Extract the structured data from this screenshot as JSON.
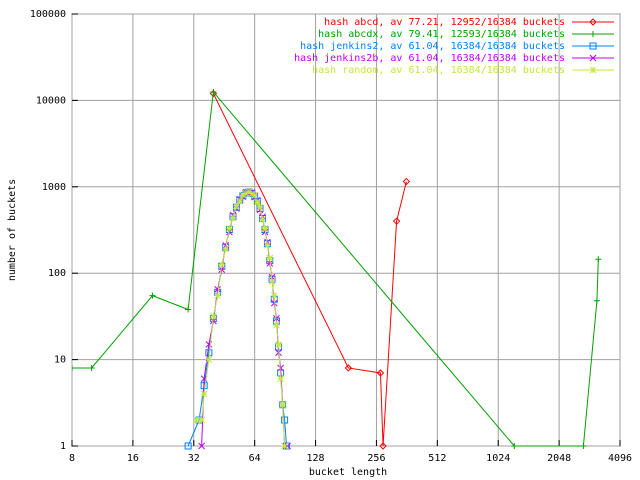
{
  "chart_data": {
    "type": "line",
    "log_x": true,
    "log_y": true,
    "grid": true,
    "xlabel": "bucket length",
    "ylabel": "number of buckets",
    "xlim": [
      8,
      4096
    ],
    "ylim": [
      1,
      100000
    ],
    "xticks": [
      8,
      16,
      32,
      64,
      128,
      256,
      512,
      1024,
      2048,
      4096
    ],
    "yticks": [
      1,
      10,
      100,
      1000,
      10000,
      100000
    ],
    "legend": "top-right",
    "series": [
      {
        "name": "hash abcd, av 77.21, 12952/16384 buckets",
        "color": "#ff0000",
        "marker": "diamond",
        "x": [
          40,
          186,
          268,
          276,
          322,
          360
        ],
        "values": [
          12000,
          8,
          7,
          1,
          400,
          1150
        ]
      },
      {
        "name": "hash abcdx, av 79.41, 12593/16384 buckets",
        "color": "#00a000",
        "marker": "plus",
        "x": [
          8,
          10,
          20,
          30,
          40,
          1230,
          2700,
          3150,
          3200
        ],
        "values": [
          8,
          8,
          55,
          38,
          12500,
          1,
          1,
          48,
          145
        ]
      },
      {
        "name": "hash jenkins2, av 61.04, 16384/16384 buckets",
        "color": "#0080ff",
        "marker": "square",
        "x": [
          30,
          34,
          36,
          38,
          40,
          42,
          44,
          46,
          48,
          50,
          52,
          54,
          56,
          58,
          60,
          62,
          64,
          66,
          68,
          70,
          72,
          74,
          76,
          78,
          80,
          82,
          84,
          86,
          88,
          90,
          92
        ],
        "values": [
          1,
          2,
          5,
          12,
          30,
          60,
          120,
          200,
          320,
          450,
          580,
          700,
          790,
          850,
          870,
          840,
          780,
          680,
          560,
          430,
          320,
          220,
          140,
          85,
          50,
          28,
          14,
          7,
          3,
          2,
          1
        ]
      },
      {
        "name": "hash jenkins2b, av 61.04, 16384/16384 buckets",
        "color": "#c000ff",
        "marker": "cross",
        "x": [
          35,
          36,
          38,
          40,
          42,
          44,
          46,
          48,
          50,
          52,
          54,
          56,
          58,
          60,
          62,
          64,
          66,
          68,
          70,
          72,
          74,
          76,
          78,
          80,
          82,
          84,
          86,
          88,
          90,
          93
        ],
        "values": [
          1,
          6,
          15,
          28,
          65,
          110,
          210,
          300,
          470,
          560,
          720,
          770,
          860,
          850,
          860,
          760,
          700,
          540,
          450,
          300,
          230,
          130,
          90,
          45,
          30,
          12,
          8,
          3,
          1,
          1
        ]
      },
      {
        "name": "hash random, av 61.04, 16384/16384 buckets",
        "color": "#c0e840",
        "marker": "star",
        "x": [
          33,
          35,
          36,
          38,
          40,
          42,
          44,
          46,
          48,
          50,
          52,
          54,
          56,
          58,
          60,
          62,
          64,
          66,
          68,
          70,
          72,
          74,
          76,
          78,
          80,
          82,
          84,
          86,
          88,
          90
        ],
        "values": [
          2,
          2,
          4,
          10,
          32,
          55,
          125,
          190,
          330,
          440,
          600,
          680,
          800,
          840,
          880,
          830,
          800,
          660,
          580,
          420,
          330,
          210,
          150,
          80,
          55,
          25,
          15,
          6,
          3,
          1
        ]
      }
    ]
  }
}
